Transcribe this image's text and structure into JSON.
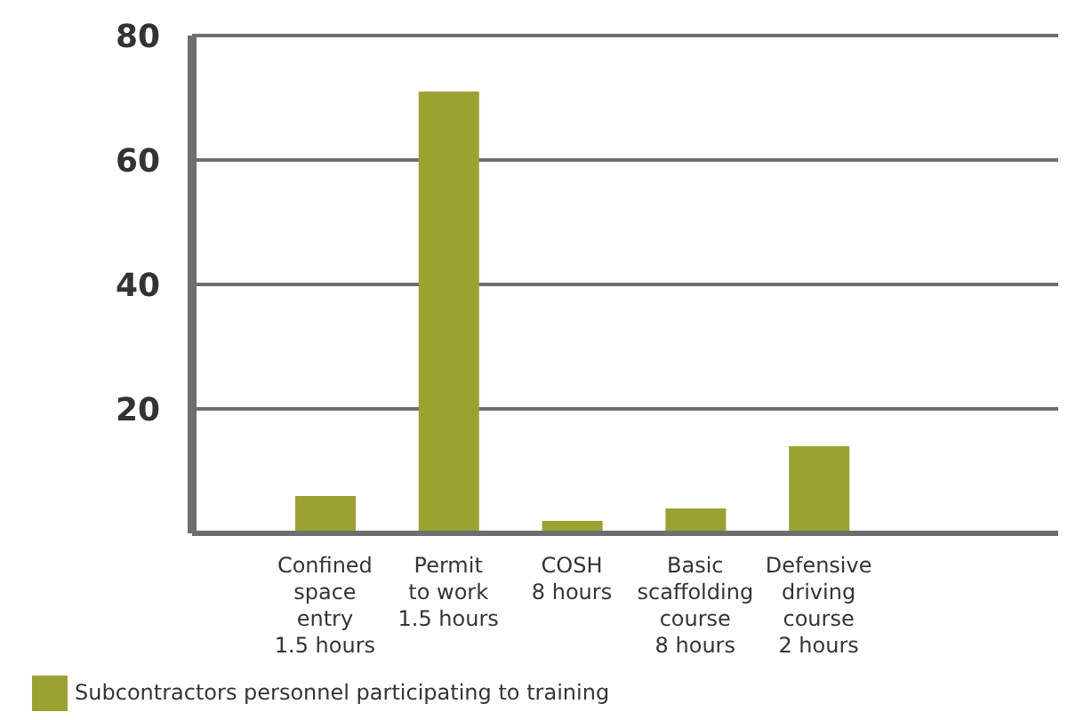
{
  "chart_data": {
    "type": "bar",
    "categories": [
      "Confined\nspace\nentry\n1.5 hours",
      "Permit\nto work\n1.5 hours",
      "COSH\n8 hours",
      "Basic\nscaffolding\ncourse\n8 hours",
      "Defensive\ndriving\ncourse\n2 hours"
    ],
    "series": [
      {
        "name": "Subcontractors personnel participating to training",
        "color": "#9ba22f",
        "values": [
          6,
          71,
          2,
          4,
          14
        ]
      }
    ],
    "ylim": [
      0,
      80
    ],
    "yticks": [
      {
        "value": 0,
        "label": null
      },
      20,
      40,
      60,
      80
    ],
    "grid": "y",
    "legend": "bottom left"
  }
}
